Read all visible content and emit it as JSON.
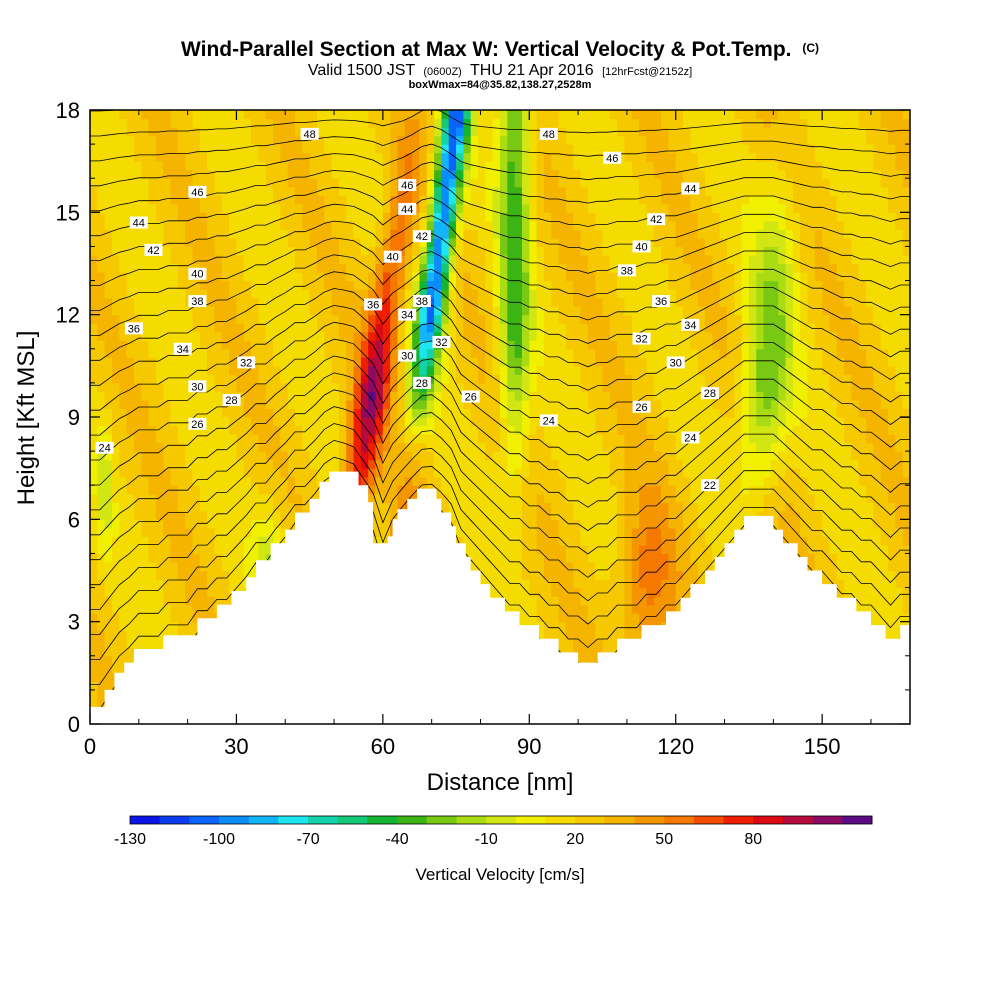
{
  "chart_data": {
    "type": "heatmap",
    "title": {
      "main": "Wind-Parallel Section at Max W: Vertical Velocity & Pot.Temp.",
      "main_unit": "(C)",
      "valid_a": "Valid 1500 JST",
      "valid_b": "(0600Z)",
      "valid_c": "THU 21 Apr 2016",
      "valid_d": "[12hrFcst@2152z]",
      "sub": "boxWmax=84@35.82,138.27,2528m"
    },
    "xlabel": "Distance [nm]",
    "ylabel": "Height [Kft MSL]",
    "xlim": [
      0,
      168
    ],
    "ylim": [
      0,
      18
    ],
    "x_ticks": [
      0,
      30,
      60,
      90,
      120,
      150
    ],
    "y_ticks": [
      0,
      3,
      6,
      9,
      12,
      15,
      18
    ],
    "colorbar": {
      "title": "Vertical Velocity [cm/s]",
      "levels": [
        -130,
        -120,
        -110,
        -100,
        -90,
        -80,
        -70,
        -60,
        -50,
        -40,
        -30,
        -20,
        -10,
        0,
        10,
        20,
        30,
        40,
        50,
        60,
        70,
        80,
        90,
        100
      ],
      "colors": [
        "#0a14e6",
        "#0a3cf0",
        "#0a64fa",
        "#0a8cfa",
        "#14b4fa",
        "#1ee6f0",
        "#14d2aa",
        "#14c878",
        "#14b432",
        "#3cb414",
        "#78c814",
        "#aadc14",
        "#d2e614",
        "#f0f000",
        "#f5dc00",
        "#f5c800",
        "#f5b400",
        "#f59600",
        "#f57800",
        "#f54b00",
        "#f01e00",
        "#dc0a14",
        "#b40a3c",
        "#8c0a64",
        "#5a0a82"
      ],
      "labels": [
        "-130",
        "-100",
        "-70",
        "-40",
        "-10",
        "20",
        "50",
        "80"
      ],
      "label_values": [
        -130,
        -100,
        -70,
        -40,
        -10,
        20,
        50,
        80
      ]
    },
    "terrain_kft": [
      [
        0,
        0.5
      ],
      [
        3,
        0.5
      ],
      [
        3,
        1.0
      ],
      [
        5,
        1.0
      ],
      [
        5,
        1.5
      ],
      [
        7,
        1.5
      ],
      [
        7,
        1.8
      ],
      [
        9,
        1.8
      ],
      [
        9,
        2.2
      ],
      [
        12,
        2.2
      ],
      [
        15,
        2.2
      ],
      [
        15,
        2.6
      ],
      [
        22,
        2.6
      ],
      [
        22,
        3.1
      ],
      [
        26,
        3.1
      ],
      [
        26,
        3.5
      ],
      [
        29,
        3.5
      ],
      [
        29,
        3.9
      ],
      [
        32,
        3.9
      ],
      [
        32,
        4.3
      ],
      [
        34,
        4.3
      ],
      [
        34,
        4.8
      ],
      [
        37,
        4.8
      ],
      [
        37,
        5.3
      ],
      [
        40,
        5.3
      ],
      [
        40,
        5.7
      ],
      [
        42,
        5.7
      ],
      [
        42,
        6.2
      ],
      [
        45,
        6.2
      ],
      [
        45,
        6.6
      ],
      [
        47,
        6.6
      ],
      [
        47,
        7.1
      ],
      [
        49,
        7.1
      ],
      [
        49,
        7.4
      ],
      [
        55,
        7.4
      ],
      [
        55,
        7.0
      ],
      [
        57,
        7.0
      ],
      [
        57,
        6.5
      ],
      [
        58,
        6.5
      ],
      [
        58,
        5.3
      ],
      [
        61,
        5.3
      ],
      [
        61,
        5.5
      ],
      [
        62,
        5.5
      ],
      [
        62,
        6.0
      ],
      [
        63,
        6.0
      ],
      [
        63,
        6.3
      ],
      [
        65,
        6.3
      ],
      [
        65,
        6.6
      ],
      [
        67,
        6.6
      ],
      [
        67,
        6.9
      ],
      [
        71,
        6.9
      ],
      [
        71,
        6.6
      ],
      [
        72,
        6.6
      ],
      [
        72,
        6.2
      ],
      [
        74,
        6.2
      ],
      [
        74,
        5.8
      ],
      [
        75,
        5.8
      ],
      [
        75,
        5.3
      ],
      [
        77,
        5.3
      ],
      [
        77,
        4.9
      ],
      [
        78,
        4.9
      ],
      [
        78,
        4.5
      ],
      [
        80,
        4.5
      ],
      [
        80,
        4.1
      ],
      [
        82,
        4.1
      ],
      [
        82,
        3.7
      ],
      [
        85,
        3.7
      ],
      [
        85,
        3.3
      ],
      [
        88,
        3.3
      ],
      [
        88,
        2.9
      ],
      [
        92,
        2.9
      ],
      [
        92,
        2.5
      ],
      [
        96,
        2.5
      ],
      [
        96,
        2.1
      ],
      [
        100,
        2.1
      ],
      [
        100,
        1.8
      ],
      [
        104,
        1.8
      ],
      [
        104,
        2.1
      ],
      [
        108,
        2.1
      ],
      [
        108,
        2.5
      ],
      [
        113,
        2.5
      ],
      [
        113,
        2.9
      ],
      [
        118,
        2.9
      ],
      [
        118,
        3.3
      ],
      [
        121,
        3.3
      ],
      [
        121,
        3.7
      ],
      [
        123,
        3.7
      ],
      [
        123,
        4.1
      ],
      [
        126,
        4.1
      ],
      [
        126,
        4.5
      ],
      [
        128,
        4.5
      ],
      [
        128,
        4.9
      ],
      [
        130,
        4.9
      ],
      [
        130,
        5.3
      ],
      [
        132,
        5.3
      ],
      [
        132,
        5.7
      ],
      [
        134,
        5.7
      ],
      [
        134,
        6.1
      ],
      [
        140,
        6.1
      ],
      [
        140,
        5.7
      ],
      [
        142,
        5.7
      ],
      [
        142,
        5.3
      ],
      [
        145,
        5.3
      ],
      [
        145,
        4.9
      ],
      [
        147,
        4.9
      ],
      [
        147,
        4.5
      ],
      [
        150,
        4.5
      ],
      [
        150,
        4.1
      ],
      [
        153,
        4.1
      ],
      [
        153,
        3.7
      ],
      [
        157,
        3.7
      ],
      [
        157,
        3.3
      ],
      [
        160,
        3.3
      ],
      [
        160,
        2.9
      ],
      [
        163,
        2.9
      ],
      [
        163,
        2.5
      ],
      [
        166,
        2.5
      ],
      [
        166,
        2.9
      ],
      [
        168,
        2.9
      ],
      [
        168,
        0
      ],
      [
        0,
        0
      ]
    ],
    "theta_contour_labels": [
      {
        "text": "48",
        "x": 45,
        "y": 17.3
      },
      {
        "text": "46",
        "x": 22,
        "y": 15.6
      },
      {
        "text": "44",
        "x": 10,
        "y": 14.7
      },
      {
        "text": "42",
        "x": 13,
        "y": 13.9
      },
      {
        "text": "40",
        "x": 22,
        "y": 13.2
      },
      {
        "text": "38",
        "x": 22,
        "y": 12.4
      },
      {
        "text": "36",
        "x": 9,
        "y": 11.6
      },
      {
        "text": "34",
        "x": 19,
        "y": 11.0
      },
      {
        "text": "32",
        "x": 32,
        "y": 10.6
      },
      {
        "text": "30",
        "x": 22,
        "y": 9.9
      },
      {
        "text": "28",
        "x": 29,
        "y": 9.5
      },
      {
        "text": "26",
        "x": 22,
        "y": 8.8
      },
      {
        "text": "24",
        "x": 3,
        "y": 8.1
      },
      {
        "text": "46",
        "x": 65,
        "y": 15.8
      },
      {
        "text": "44",
        "x": 65,
        "y": 15.1
      },
      {
        "text": "42",
        "x": 68,
        "y": 14.3
      },
      {
        "text": "40",
        "x": 62,
        "y": 13.7
      },
      {
        "text": "38",
        "x": 68,
        "y": 12.4
      },
      {
        "text": "36",
        "x": 58,
        "y": 12.3
      },
      {
        "text": "34",
        "x": 65,
        "y": 12.0
      },
      {
        "text": "32",
        "x": 72,
        "y": 11.2
      },
      {
        "text": "30",
        "x": 65,
        "y": 10.8
      },
      {
        "text": "28",
        "x": 68,
        "y": 10.0
      },
      {
        "text": "26",
        "x": 78,
        "y": 9.6
      },
      {
        "text": "24",
        "x": 94,
        "y": 8.9
      },
      {
        "text": "22",
        "x": 127,
        "y": 7.0
      },
      {
        "text": "48",
        "x": 94,
        "y": 17.3
      },
      {
        "text": "46",
        "x": 107,
        "y": 16.6
      },
      {
        "text": "44",
        "x": 123,
        "y": 15.7
      },
      {
        "text": "42",
        "x": 116,
        "y": 14.8
      },
      {
        "text": "40",
        "x": 113,
        "y": 14.0
      },
      {
        "text": "38",
        "x": 110,
        "y": 13.3
      },
      {
        "text": "36",
        "x": 117,
        "y": 12.4
      },
      {
        "text": "34",
        "x": 123,
        "y": 11.7
      },
      {
        "text": "32",
        "x": 113,
        "y": 11.3
      },
      {
        "text": "30",
        "x": 120,
        "y": 10.6
      },
      {
        "text": "28",
        "x": 127,
        "y": 9.7
      },
      {
        "text": "26",
        "x": 113,
        "y": 9.3
      },
      {
        "text": "24",
        "x": 123,
        "y": 8.4
      }
    ]
  }
}
